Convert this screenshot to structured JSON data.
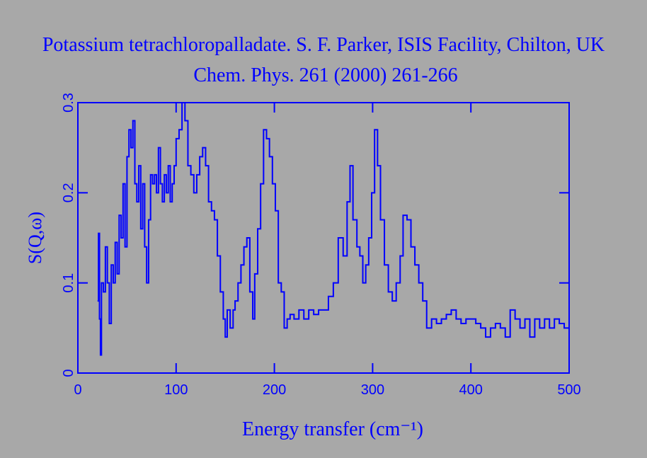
{
  "chart_data": {
    "type": "line",
    "title": "Potassium tetrachloropalladate. S. F. Parker, ISIS Facility, Chilton, UK",
    "subtitle": "Chem. Phys. 261 (2000) 261-266",
    "xlabel": "Energy transfer (cm⁻¹)",
    "ylabel": "S(Q,ω)",
    "xlim": [
      0,
      500
    ],
    "ylim": [
      0,
      0.3
    ],
    "xticks": [
      0,
      100,
      200,
      300,
      400,
      500
    ],
    "yticks": [
      0,
      0.1,
      0.2,
      0.3
    ],
    "color": "#0000ff",
    "x": [
      20,
      21,
      22,
      23,
      24,
      26,
      28,
      30,
      32,
      34,
      36,
      38,
      40,
      42,
      44,
      46,
      48,
      50,
      52,
      54,
      56,
      58,
      60,
      62,
      64,
      66,
      68,
      70,
      72,
      74,
      76,
      78,
      80,
      82,
      84,
      86,
      88,
      90,
      92,
      94,
      96,
      98,
      100,
      103,
      106,
      109,
      112,
      115,
      118,
      121,
      124,
      127,
      130,
      133,
      136,
      139,
      142,
      145,
      148,
      150,
      152,
      155,
      158,
      160,
      163,
      166,
      169,
      172,
      175,
      178,
      180,
      183,
      186,
      189,
      192,
      195,
      198,
      201,
      204,
      207,
      210,
      213,
      216,
      220,
      225,
      230,
      235,
      240,
      245,
      250,
      255,
      260,
      265,
      270,
      274,
      277,
      280,
      284,
      287,
      290,
      293,
      296,
      299,
      302,
      305,
      308,
      312,
      316,
      320,
      324,
      328,
      331,
      335,
      339,
      343,
      347,
      351,
      355,
      360,
      365,
      370,
      375,
      380,
      385,
      390,
      395,
      400,
      405,
      410,
      415,
      420,
      425,
      430,
      435,
      440,
      445,
      450,
      455,
      460,
      465,
      470,
      475,
      480,
      485,
      490,
      495,
      500
    ],
    "values": [
      0.08,
      0.155,
      0.06,
      0.02,
      0.1,
      0.09,
      0.14,
      0.1,
      0.055,
      0.12,
      0.1,
      0.145,
      0.11,
      0.175,
      0.15,
      0.21,
      0.14,
      0.24,
      0.27,
      0.25,
      0.28,
      0.21,
      0.19,
      0.23,
      0.16,
      0.21,
      0.14,
      0.1,
      0.17,
      0.22,
      0.21,
      0.22,
      0.2,
      0.25,
      0.21,
      0.19,
      0.22,
      0.2,
      0.23,
      0.19,
      0.21,
      0.23,
      0.26,
      0.27,
      0.3,
      0.28,
      0.23,
      0.22,
      0.2,
      0.22,
      0.24,
      0.25,
      0.23,
      0.19,
      0.18,
      0.17,
      0.13,
      0.09,
      0.06,
      0.04,
      0.07,
      0.05,
      0.07,
      0.08,
      0.1,
      0.12,
      0.14,
      0.15,
      0.09,
      0.06,
      0.11,
      0.16,
      0.21,
      0.27,
      0.26,
      0.24,
      0.21,
      0.18,
      0.1,
      0.09,
      0.05,
      0.06,
      0.065,
      0.06,
      0.07,
      0.06,
      0.07,
      0.065,
      0.07,
      0.07,
      0.085,
      0.1,
      0.15,
      0.13,
      0.19,
      0.23,
      0.17,
      0.14,
      0.13,
      0.1,
      0.12,
      0.15,
      0.2,
      0.27,
      0.23,
      0.17,
      0.12,
      0.09,
      0.08,
      0.1,
      0.13,
      0.175,
      0.17,
      0.14,
      0.12,
      0.1,
      0.08,
      0.05,
      0.06,
      0.055,
      0.06,
      0.065,
      0.07,
      0.06,
      0.055,
      0.06,
      0.06,
      0.055,
      0.05,
      0.04,
      0.05,
      0.055,
      0.05,
      0.04,
      0.07,
      0.06,
      0.05,
      0.06,
      0.04,
      0.06,
      0.05,
      0.06,
      0.05,
      0.06,
      0.055,
      0.05,
      0.05
    ]
  }
}
